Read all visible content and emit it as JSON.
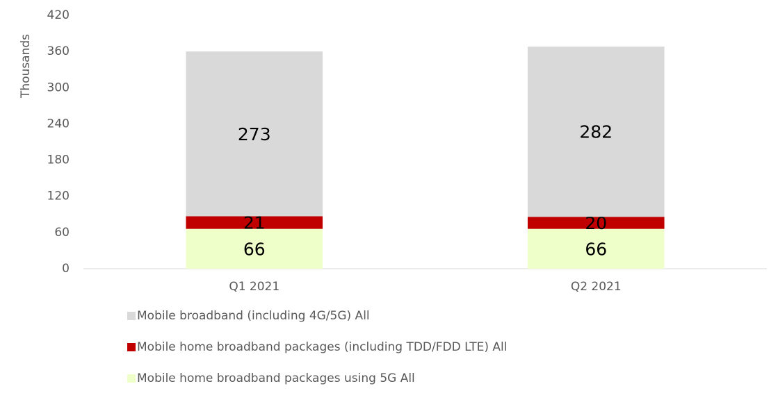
{
  "chart_data": {
    "type": "bar",
    "stacked": true,
    "y_label": "Thousands",
    "categories": [
      "Q1 2021",
      "Q2 2021"
    ],
    "series": [
      {
        "name": "Mobile home broadband packages using 5G All",
        "color": "#efffc9",
        "values": [
          66,
          66
        ]
      },
      {
        "name": "Mobile home broadband packages (including TDD/FDD LTE) All",
        "color": "#c00000",
        "values": [
          21,
          20
        ]
      },
      {
        "name": "Mobile broadband (including 4G/5G) All",
        "color": "#d9d9d9",
        "values": [
          273,
          282
        ]
      }
    ],
    "ylim": [
      0,
      420
    ],
    "yticks": [
      0,
      60,
      120,
      180,
      240,
      300,
      360,
      420
    ],
    "grid": false,
    "legend": "bottom"
  }
}
